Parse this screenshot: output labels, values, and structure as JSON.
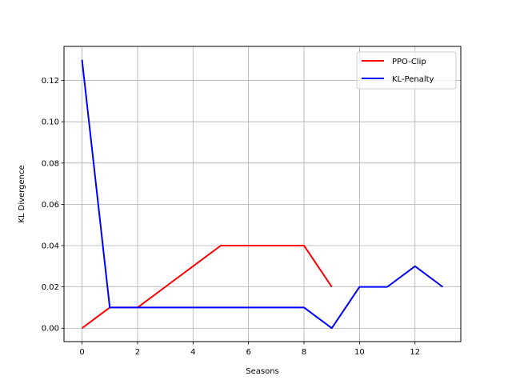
{
  "chart_data": {
    "type": "line",
    "xlabel": "Seasons",
    "ylabel": "KL Divergence",
    "xlim": [
      -0.65,
      13.65
    ],
    "ylim": [
      -0.0065,
      0.1365
    ],
    "xticks": [
      0,
      2,
      4,
      6,
      8,
      10,
      12
    ],
    "yticks": [
      0.0,
      0.02,
      0.04,
      0.06,
      0.08,
      0.1,
      0.12
    ],
    "x_tick_labels": [
      "0",
      "2",
      "4",
      "6",
      "8",
      "10",
      "12"
    ],
    "y_tick_labels": [
      "0.00",
      "0.02",
      "0.04",
      "0.06",
      "0.08",
      "0.10",
      "0.12"
    ],
    "grid": true,
    "legend_position": "top-right",
    "series": [
      {
        "name": "PPO-Clip",
        "color": "#ff0000",
        "x": [
          0,
          1,
          2,
          3,
          4,
          5,
          6,
          7,
          8,
          9
        ],
        "values": [
          0.0,
          0.01,
          0.01,
          0.02,
          0.03,
          0.04,
          0.04,
          0.04,
          0.04,
          0.02
        ]
      },
      {
        "name": "KL-Penalty",
        "color": "#0000ff",
        "x": [
          0,
          1,
          2,
          3,
          4,
          5,
          6,
          7,
          8,
          9,
          10,
          11,
          12,
          13
        ],
        "values": [
          0.13,
          0.01,
          0.01,
          0.01,
          0.01,
          0.01,
          0.01,
          0.01,
          0.01,
          0.0,
          0.02,
          0.02,
          0.03,
          0.02
        ]
      }
    ]
  }
}
